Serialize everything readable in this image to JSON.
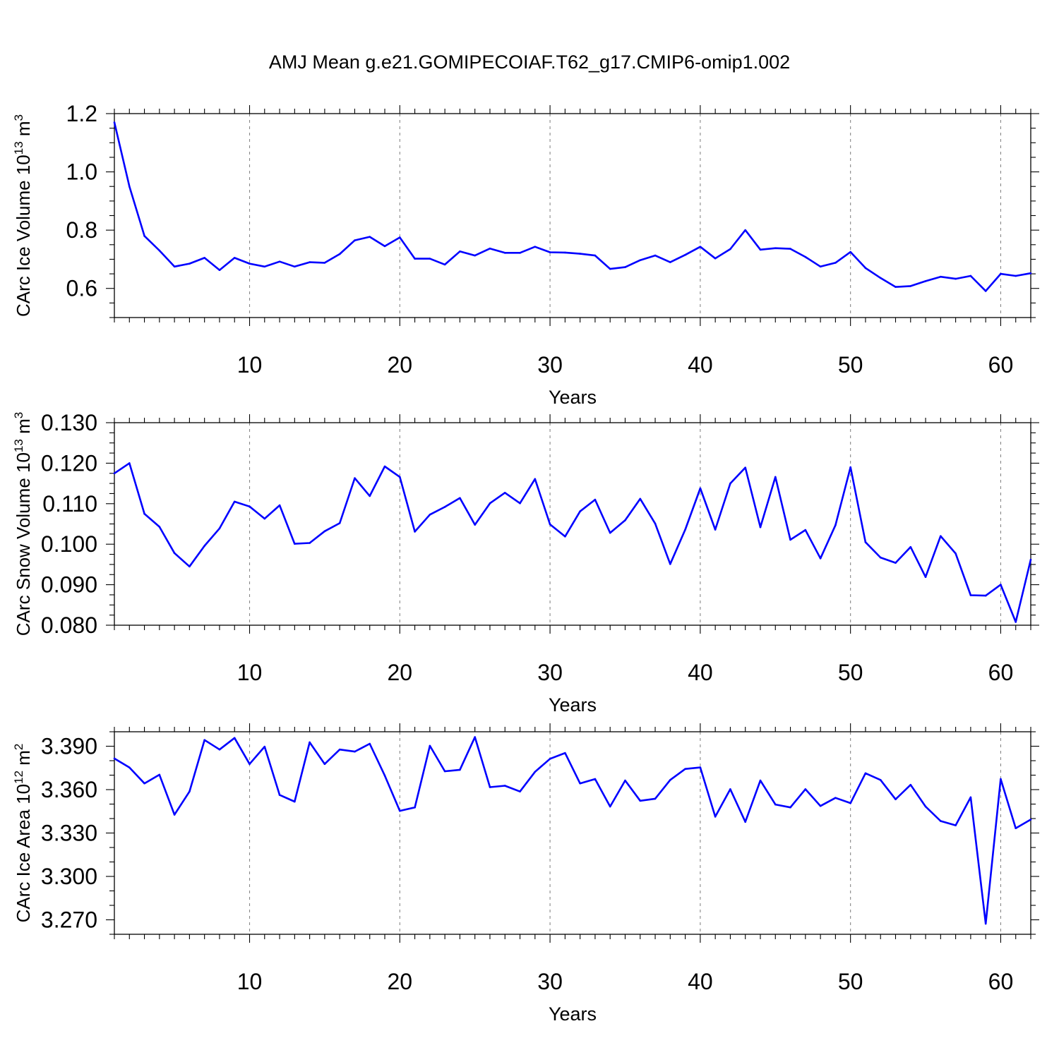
{
  "figure": {
    "title": "AMJ Mean g.e21.GOMIPECOIAF.T62_g17.CMIP6-omip1.002",
    "line_color": "#0000ff",
    "grid_color": "#888888"
  },
  "chart_data": [
    {
      "type": "line",
      "title": "AMJ Mean g.e21.GOMIPECOIAF.T62_g17.CMIP6-omip1.002",
      "xlabel": "Years",
      "ylabel": "CArc Ice Volume 10",
      "ylabel_sup": "13",
      "ylabel_unit": " m",
      "ylabel_unit_sup": "3",
      "xlim": [
        1,
        62
      ],
      "ylim": [
        0.5,
        1.2
      ],
      "xticks": [
        10,
        20,
        30,
        40,
        50,
        60
      ],
      "yticks": [
        0.6,
        0.8,
        1.0,
        1.2
      ],
      "ytick_labels": [
        "0.6",
        "0.8",
        "1.0",
        "1.2"
      ],
      "yminor": 0.05,
      "grid": "dashed vertical lines at x ticks",
      "series": [
        {
          "color": "#0000ff",
          "x": [
            1,
            2,
            3,
            4,
            5,
            6,
            7,
            8,
            9,
            10,
            11,
            12,
            13,
            14,
            15,
            16,
            17,
            18,
            19,
            20,
            21,
            22,
            23,
            24,
            25,
            26,
            27,
            28,
            29,
            30,
            31,
            32,
            33,
            34,
            35,
            36,
            37,
            38,
            39,
            40,
            41,
            42,
            43,
            44,
            45,
            46,
            47,
            48,
            49,
            50,
            51,
            52,
            53,
            54,
            55,
            56,
            57,
            58,
            59,
            60,
            61,
            62
          ],
          "y": [
            1.17,
            0.95,
            0.78,
            0.73,
            0.675,
            0.685,
            0.705,
            0.663,
            0.705,
            0.685,
            0.675,
            0.692,
            0.675,
            0.69,
            0.688,
            0.718,
            0.765,
            0.777,
            0.745,
            0.775,
            0.702,
            0.702,
            0.682,
            0.727,
            0.713,
            0.737,
            0.722,
            0.722,
            0.743,
            0.724,
            0.723,
            0.719,
            0.713,
            0.667,
            0.673,
            0.697,
            0.713,
            0.69,
            0.715,
            0.743,
            0.703,
            0.735,
            0.8,
            0.733,
            0.738,
            0.736,
            0.708,
            0.675,
            0.688,
            0.725,
            0.67,
            0.636,
            0.605,
            0.608,
            0.625,
            0.64,
            0.633,
            0.643,
            0.591,
            0.65,
            0.643,
            0.652
          ]
        }
      ]
    },
    {
      "type": "line",
      "xlabel": "Years",
      "ylabel": "CArc Snow Volume 10",
      "ylabel_sup": "13",
      "ylabel_unit": " m",
      "ylabel_unit_sup": "3",
      "xlim": [
        1,
        62
      ],
      "ylim": [
        0.08,
        0.13
      ],
      "xticks": [
        10,
        20,
        30,
        40,
        50,
        60
      ],
      "yticks": [
        0.08,
        0.09,
        0.1,
        0.11,
        0.12,
        0.13
      ],
      "ytick_labels": [
        "0.080",
        "0.090",
        "0.100",
        "0.110",
        "0.120",
        "0.130"
      ],
      "yminor": 0.0025,
      "grid": "dashed vertical lines at x ticks",
      "series": [
        {
          "color": "#0000ff",
          "x": [
            1,
            2,
            3,
            4,
            5,
            6,
            7,
            8,
            9,
            10,
            11,
            12,
            13,
            14,
            15,
            16,
            17,
            18,
            19,
            20,
            21,
            22,
            23,
            24,
            25,
            26,
            27,
            28,
            29,
            30,
            31,
            32,
            33,
            34,
            35,
            36,
            37,
            38,
            39,
            40,
            41,
            42,
            43,
            44,
            45,
            46,
            47,
            48,
            49,
            50,
            51,
            52,
            53,
            54,
            55,
            56,
            57,
            58,
            59,
            60,
            61,
            62
          ],
          "y": [
            0.1175,
            0.12,
            0.1075,
            0.1043,
            0.0978,
            0.0945,
            0.0996,
            0.1039,
            0.1105,
            0.1093,
            0.1063,
            0.1096,
            0.1001,
            0.1003,
            0.1032,
            0.1052,
            0.1163,
            0.1119,
            0.1192,
            0.1166,
            0.1031,
            0.1073,
            0.1092,
            0.1114,
            0.1048,
            0.1101,
            0.1127,
            0.1101,
            0.1161,
            0.1049,
            0.1019,
            0.1081,
            0.111,
            0.1028,
            0.1059,
            0.1112,
            0.1051,
            0.0951,
            0.1036,
            0.1138,
            0.1036,
            0.115,
            0.1189,
            0.1042,
            0.1166,
            0.1011,
            0.1035,
            0.0965,
            0.1047,
            0.119,
            0.1005,
            0.0967,
            0.0954,
            0.0993,
            0.0919,
            0.102,
            0.0977,
            0.0874,
            0.0873,
            0.09,
            0.0808,
            0.0962
          ]
        }
      ]
    },
    {
      "type": "line",
      "xlabel": "Years",
      "ylabel": "CArc Ice Area 10",
      "ylabel_sup": "12",
      "ylabel_unit": " m",
      "ylabel_unit_sup": "2",
      "xlim": [
        1,
        62
      ],
      "ylim": [
        3.26,
        3.4
      ],
      "xticks": [
        10,
        20,
        30,
        40,
        50,
        60
      ],
      "yticks": [
        3.27,
        3.3,
        3.33,
        3.36,
        3.39
      ],
      "ytick_labels": [
        "3.270",
        "3.300",
        "3.330",
        "3.360",
        "3.390"
      ],
      "yminor": 0.01,
      "grid": "dashed vertical lines at x ticks",
      "series": [
        {
          "color": "#0000ff",
          "x": [
            1,
            2,
            3,
            4,
            5,
            6,
            7,
            8,
            9,
            10,
            11,
            12,
            13,
            14,
            15,
            16,
            17,
            18,
            19,
            20,
            21,
            22,
            23,
            24,
            25,
            26,
            27,
            28,
            29,
            30,
            31,
            32,
            33,
            34,
            35,
            36,
            37,
            38,
            39,
            40,
            41,
            42,
            43,
            44,
            45,
            46,
            47,
            48,
            49,
            50,
            51,
            52,
            53,
            54,
            55,
            56,
            57,
            58,
            59,
            60,
            61,
            62
          ],
          "y": [
            3.3815,
            3.3753,
            3.3643,
            3.3703,
            3.3427,
            3.3587,
            3.3943,
            3.3877,
            3.3957,
            3.3777,
            3.3897,
            3.3563,
            3.3517,
            3.3927,
            3.3777,
            3.3877,
            3.3863,
            3.3917,
            3.3697,
            3.3453,
            3.3477,
            3.3903,
            3.3727,
            3.3737,
            3.3963,
            3.3617,
            3.3627,
            3.3587,
            3.3723,
            3.3813,
            3.3853,
            3.3643,
            3.3673,
            3.3483,
            3.3663,
            3.3523,
            3.3537,
            3.3667,
            3.3743,
            3.3753,
            3.3413,
            3.3603,
            3.3377,
            3.3663,
            3.3497,
            3.3477,
            3.3603,
            3.3487,
            3.3543,
            3.3507,
            3.3713,
            3.3667,
            3.3533,
            3.3633,
            3.3483,
            3.3383,
            3.3353,
            3.3547,
            3.2673,
            3.3673,
            3.3333,
            3.3393
          ]
        }
      ]
    }
  ]
}
